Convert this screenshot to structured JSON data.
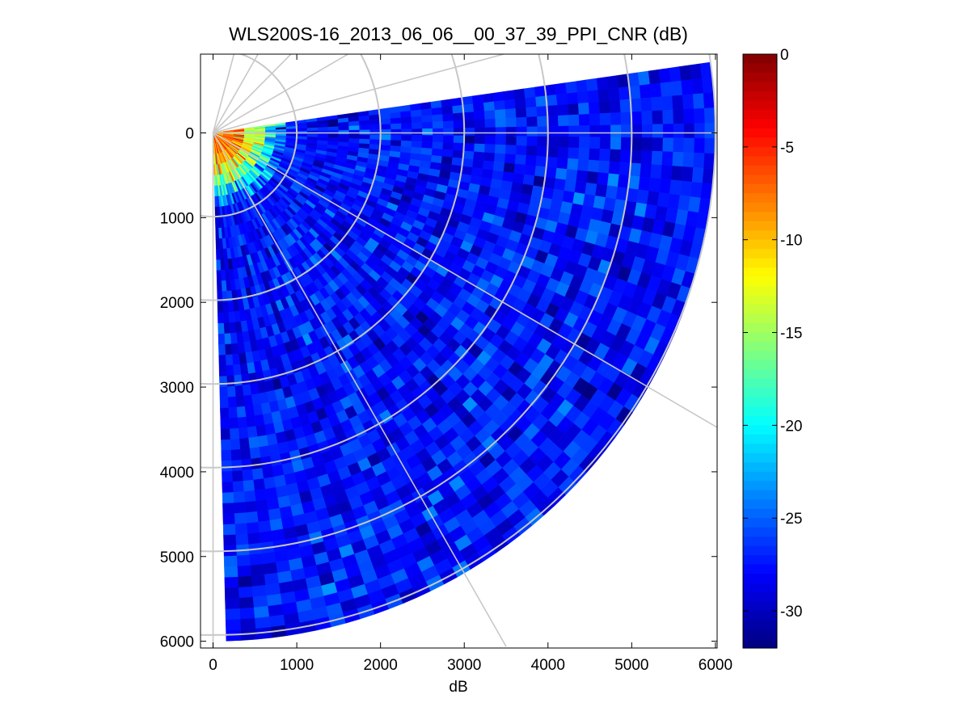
{
  "chart_data": {
    "type": "heatmap",
    "subtype": "polar-ppi-scan",
    "title": "WLS200S-16_2013_06_06__00_37_39_PPI_CNR (dB)",
    "xlabel": "dB",
    "ylabel": "",
    "xlim": [
      -150,
      6020
    ],
    "ylim": [
      6080,
      -930
    ],
    "y_axis_direction": "down",
    "xticks": [
      0,
      1000,
      2000,
      3000,
      4000,
      5000,
      6000
    ],
    "yticks": [
      0,
      1000,
      2000,
      3000,
      4000,
      5000,
      6000
    ],
    "grid": true,
    "polar_grid": {
      "range_rings": [
        1000,
        2000,
        3000,
        4000,
        5000,
        6000
      ],
      "radial_lines_deg_below_east": [
        0,
        30,
        60,
        90,
        -15,
        -30,
        -45,
        -60,
        -75
      ]
    },
    "scan": {
      "origin": [
        0,
        0
      ],
      "azimuth_start_deg_below_east": -8,
      "azimuth_end_deg_below_east": 88.5,
      "max_range": 6000,
      "range_gates": 48,
      "azimuth_bins": 56
    },
    "colorbar": {
      "colormap": "jet",
      "clim": [
        -32,
        0
      ],
      "ticks": [
        0,
        -5,
        -10,
        -15,
        -20,
        -25,
        -30
      ],
      "position": "right"
    },
    "cnr_profile": {
      "near_range_value": -8,
      "near_range_end": 300,
      "transition_end": 900,
      "background_mean": -27.5,
      "background_spread": 3.2,
      "noise_seed": 20130606
    }
  }
}
